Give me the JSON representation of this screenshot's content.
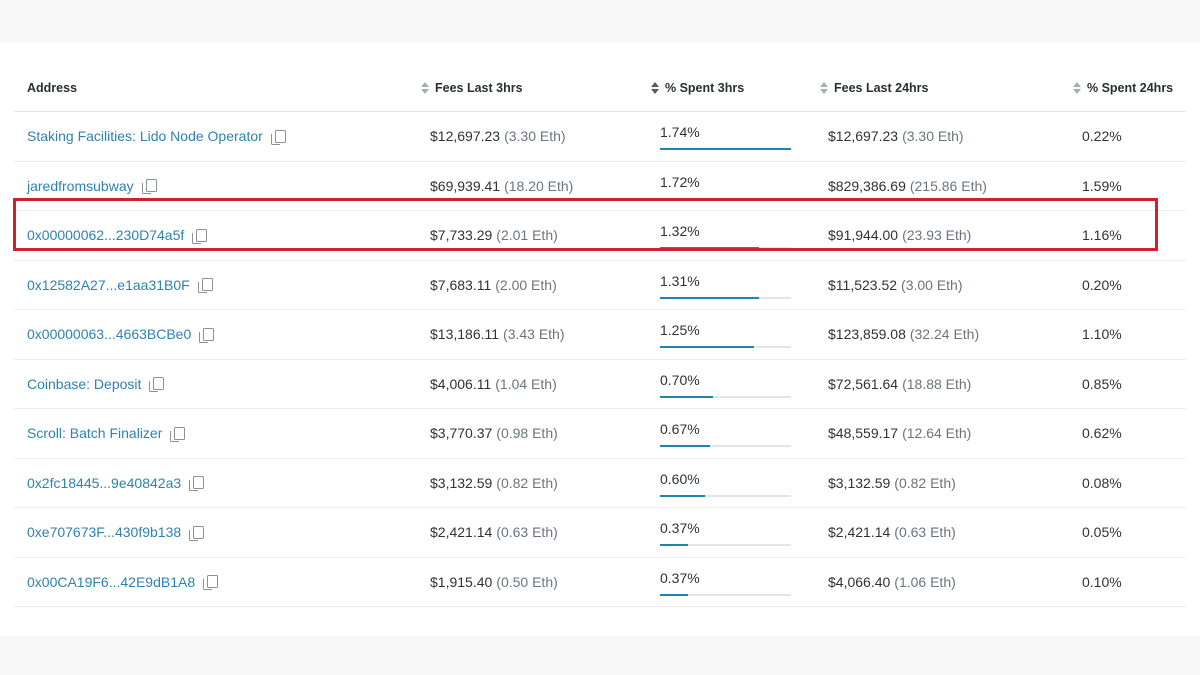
{
  "table": {
    "headers": {
      "address": "Address",
      "fees_3h": "Fees Last 3hrs",
      "spent_3h": "% Spent 3hrs",
      "fees_24h": "Fees Last 24hrs",
      "spent_24h": "% Spent 24hrs"
    },
    "rows": [
      {
        "address": "Staking Facilities: Lido Node Operator",
        "fees_3h": "$12,697.23",
        "eth_3h": "(3.30 Eth)",
        "spent_3h": "1.74%",
        "spent_3h_value": 1.74,
        "fees_24h": "$12,697.23",
        "eth_24h": "(3.30 Eth)",
        "spent_24h": "0.22%"
      },
      {
        "address": "jaredfromsubway",
        "fees_3h": "$69,939.41",
        "eth_3h": "(18.20 Eth)",
        "spent_3h": "1.72%",
        "spent_3h_value": 1.72,
        "fees_24h": "$829,386.69",
        "eth_24h": "(215.86 Eth)",
        "spent_24h": "1.59%"
      },
      {
        "address": "0x00000062...230D74a5f",
        "fees_3h": "$7,733.29",
        "eth_3h": "(2.01 Eth)",
        "spent_3h": "1.32%",
        "spent_3h_value": 1.32,
        "fees_24h": "$91,944.00",
        "eth_24h": "(23.93 Eth)",
        "spent_24h": "1.16%"
      },
      {
        "address": "0x12582A27...e1aa31B0F",
        "fees_3h": "$7,683.11",
        "eth_3h": "(2.00 Eth)",
        "spent_3h": "1.31%",
        "spent_3h_value": 1.31,
        "fees_24h": "$11,523.52",
        "eth_24h": "(3.00 Eth)",
        "spent_24h": "0.20%"
      },
      {
        "address": "0x00000063...4663BCBe0",
        "fees_3h": "$13,186.11",
        "eth_3h": "(3.43 Eth)",
        "spent_3h": "1.25%",
        "spent_3h_value": 1.25,
        "fees_24h": "$123,859.08",
        "eth_24h": "(32.24 Eth)",
        "spent_24h": "1.10%"
      },
      {
        "address": "Coinbase: Deposit",
        "fees_3h": "$4,006.11",
        "eth_3h": "(1.04 Eth)",
        "spent_3h": "0.70%",
        "spent_3h_value": 0.7,
        "fees_24h": "$72,561.64",
        "eth_24h": "(18.88 Eth)",
        "spent_24h": "0.85%"
      },
      {
        "address": "Scroll: Batch Finalizer",
        "fees_3h": "$3,770.37",
        "eth_3h": "(0.98 Eth)",
        "spent_3h": "0.67%",
        "spent_3h_value": 0.67,
        "fees_24h": "$48,559.17",
        "eth_24h": "(12.64 Eth)",
        "spent_24h": "0.62%"
      },
      {
        "address": "0x2fc18445...9e40842a3",
        "fees_3h": "$3,132.59",
        "eth_3h": "(0.82 Eth)",
        "spent_3h": "0.60%",
        "spent_3h_value": 0.6,
        "fees_24h": "$3,132.59",
        "eth_24h": "(0.82 Eth)",
        "spent_24h": "0.08%"
      },
      {
        "address": "0xe707673F...430f9b138",
        "fees_3h": "$2,421.14",
        "eth_3h": "(0.63 Eth)",
        "spent_3h": "0.37%",
        "spent_3h_value": 0.37,
        "fees_24h": "$2,421.14",
        "eth_24h": "(0.63 Eth)",
        "spent_24h": "0.05%"
      },
      {
        "address": "0x00CA19F6...42E9dB1A8",
        "fees_3h": "$1,915.40",
        "eth_3h": "(0.50 Eth)",
        "spent_3h": "0.37%",
        "spent_3h_value": 0.37,
        "fees_24h": "$4,066.40",
        "eth_24h": "(1.06 Eth)",
        "spent_24h": "0.10%"
      }
    ],
    "bar_scale_max_percent": 1.74,
    "highlighted_row_index": 1
  },
  "colors": {
    "link": "#2d83b0",
    "bar": "#1f83b3",
    "highlight": "#cf2030"
  },
  "icons": {
    "sort": "sort-icon",
    "copy": "copy-icon"
  }
}
